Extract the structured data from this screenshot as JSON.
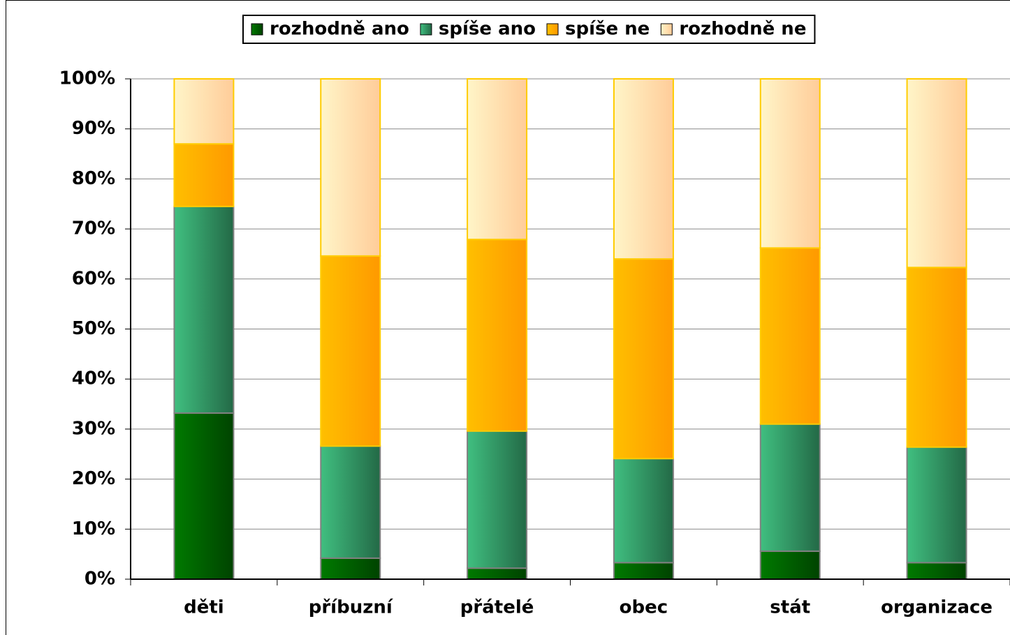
{
  "chart_data": {
    "type": "stacked_bar",
    "categories": [
      "děti",
      "příbuzní",
      "přátelé",
      "obec",
      "stát",
      "organizace"
    ],
    "series": [
      {
        "name": "rozhodně ano",
        "color": "#007a00",
        "values": [
          33.2,
          4.2,
          2.2,
          3.3,
          5.6,
          3.3
        ]
      },
      {
        "name": "spíše ano",
        "color": "#40bf80",
        "values": [
          41.3,
          22.4,
          27.4,
          20.8,
          25.4,
          23.1
        ]
      },
      {
        "name": "spíše ne",
        "color": "#ffbf00",
        "values": [
          12.5,
          38.0,
          38.3,
          39.9,
          35.2,
          35.9
        ]
      },
      {
        "name": "rozhodně ne",
        "color": "#fff5c8",
        "values": [
          13.0,
          35.4,
          32.1,
          36.0,
          33.8,
          37.7
        ]
      }
    ],
    "ylim": [
      0,
      100
    ],
    "yticks": [
      {
        "value": 0,
        "label": "0%"
      },
      {
        "value": 10,
        "label": "10%"
      },
      {
        "value": 20,
        "label": "20%"
      },
      {
        "value": 30,
        "label": "30%"
      },
      {
        "value": 40,
        "label": "40%"
      },
      {
        "value": 50,
        "label": "50%"
      },
      {
        "value": 60,
        "label": "60%"
      },
      {
        "value": 70,
        "label": "70%"
      },
      {
        "value": 80,
        "label": "80%"
      },
      {
        "value": 90,
        "label": "90%"
      },
      {
        "value": 100,
        "label": "100%"
      }
    ],
    "grid": true,
    "legend": "top"
  }
}
